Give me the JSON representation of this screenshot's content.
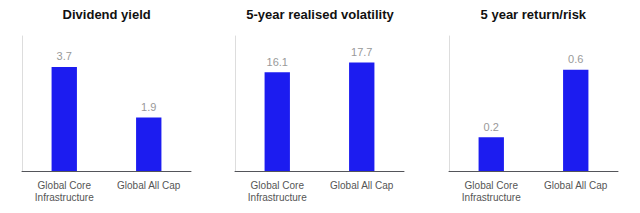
{
  "chart_data": [
    {
      "type": "bar",
      "title": "Dividend yield",
      "categories": [
        "Global Core\nInfrastructure",
        "Global All Cap"
      ],
      "values": [
        3.7,
        1.9
      ],
      "color": "#1c1cf0",
      "ylim": [
        0,
        4.8
      ],
      "grid": false,
      "data_labels": true,
      "tick_labels": "x"
    },
    {
      "type": "bar",
      "title": "5-year realised volatility",
      "categories": [
        "Global Core\nInfrastructure",
        "Global All Cap"
      ],
      "values": [
        16.1,
        17.7
      ],
      "color": "#1c1cf0",
      "ylim": [
        0,
        22.0
      ],
      "grid": false,
      "data_labels": true,
      "tick_labels": "x"
    },
    {
      "type": "bar",
      "title": "5 year return/risk",
      "categories": [
        "Global Core\nInfrastructure",
        "Global All Cap"
      ],
      "values": [
        0.2,
        0.6
      ],
      "color": "#1c1cf0",
      "ylim": [
        0,
        0.8
      ],
      "grid": false,
      "data_labels": true,
      "tick_labels": "x"
    }
  ]
}
